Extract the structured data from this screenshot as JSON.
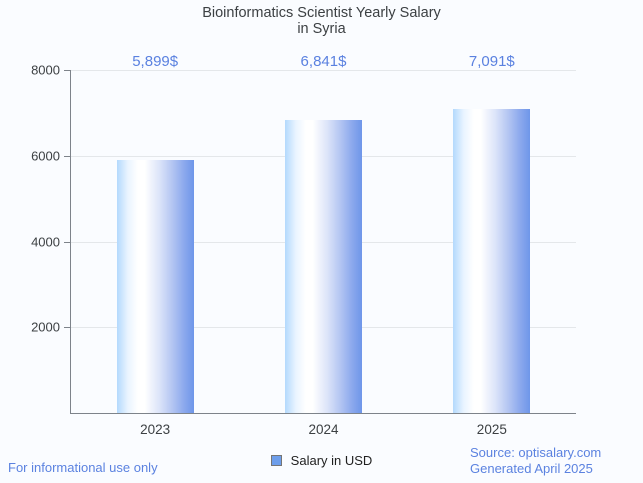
{
  "header": {
    "title_line1": "Bioinformatics Scientist Yearly Salary",
    "title_line2": "in Syria"
  },
  "chart_data": {
    "type": "bar",
    "title": "Bioinformatics Scientist Yearly Salary in Syria",
    "categories": [
      "2023",
      "2024",
      "2025"
    ],
    "series": [
      {
        "name": "Salary in USD",
        "values": [
          5899,
          6841,
          7091
        ],
        "value_labels": [
          "5,899$",
          "6,841$",
          "7,091$"
        ]
      }
    ],
    "xlabel": "",
    "ylabel": "",
    "ylim": [
      0,
      8000
    ],
    "yticks": [
      2000,
      4000,
      6000,
      8000
    ],
    "grid": "horizontal",
    "legend_position": "bottom",
    "colors": {
      "bar_gradient_left": "#b3d9fd",
      "bar_gradient_mid": "#ffffff",
      "bar_gradient_right": "#6e96e9",
      "value_label": "#5a81e0",
      "legend_marker": "#6d9eeb",
      "title": "#3c4043",
      "footer_text": "#5b82e0"
    }
  },
  "footer": {
    "left": "For informational use only",
    "source": "Source: optisalary.com",
    "generated": "Generated April 2025"
  }
}
